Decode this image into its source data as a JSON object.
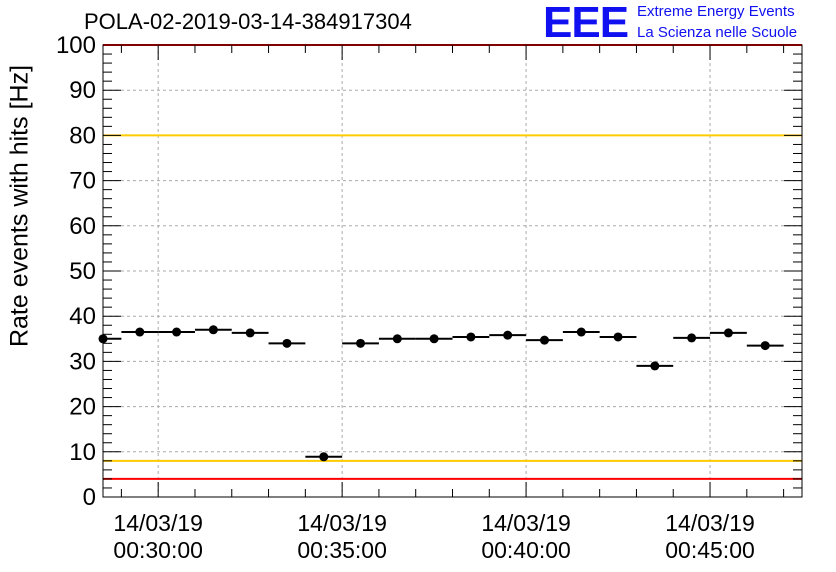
{
  "title": "POLA-02-2019-03-14-384917304",
  "logo": {
    "letters": "EEE",
    "line1": "Extreme Energy Events",
    "line2": "La Scienza nelle Scuole"
  },
  "chart_data": {
    "type": "scatter",
    "title": "POLA-02-2019-03-14-384917304",
    "ylabel": "Rate events with hits [Hz]",
    "xlabel": "",
    "ylim": [
      0,
      100
    ],
    "yticks": [
      0,
      10,
      20,
      30,
      40,
      50,
      60,
      70,
      80,
      90,
      100
    ],
    "xlim": [
      "00:28:30",
      "00:47:30"
    ],
    "xticks": [
      {
        "time": "00:30:00",
        "label_date": "14/03/19",
        "label_time": "00:30:00"
      },
      {
        "time": "00:35:00",
        "label_date": "14/03/19",
        "label_time": "00:35:00"
      },
      {
        "time": "00:40:00",
        "label_date": "14/03/19",
        "label_time": "00:40:00"
      },
      {
        "time": "00:45:00",
        "label_date": "14/03/19",
        "label_time": "00:45:00"
      }
    ],
    "grid": true,
    "bin_width": "00:01:00",
    "points": [
      {
        "x": "00:28:30",
        "y": 35.0
      },
      {
        "x": "00:29:30",
        "y": 36.5
      },
      {
        "x": "00:30:30",
        "y": 36.5
      },
      {
        "x": "00:31:30",
        "y": 37.0
      },
      {
        "x": "00:32:30",
        "y": 36.3
      },
      {
        "x": "00:33:30",
        "y": 34.0
      },
      {
        "x": "00:34:30",
        "y": 8.9
      },
      {
        "x": "00:35:30",
        "y": 34.0
      },
      {
        "x": "00:36:30",
        "y": 35.0
      },
      {
        "x": "00:37:30",
        "y": 35.0
      },
      {
        "x": "00:38:30",
        "y": 35.4
      },
      {
        "x": "00:39:30",
        "y": 35.8
      },
      {
        "x": "00:40:30",
        "y": 34.7
      },
      {
        "x": "00:41:30",
        "y": 36.5
      },
      {
        "x": "00:42:30",
        "y": 35.4
      },
      {
        "x": "00:43:30",
        "y": 29.0
      },
      {
        "x": "00:44:30",
        "y": 35.2
      },
      {
        "x": "00:45:30",
        "y": 36.3
      },
      {
        "x": "00:46:30",
        "y": 33.5
      }
    ],
    "reference_lines": [
      {
        "y": 100,
        "color": "#ff0000"
      },
      {
        "y": 80,
        "color": "#ffcc00"
      },
      {
        "y": 8,
        "color": "#ffcc00"
      },
      {
        "y": 4,
        "color": "#ff0000"
      }
    ]
  }
}
